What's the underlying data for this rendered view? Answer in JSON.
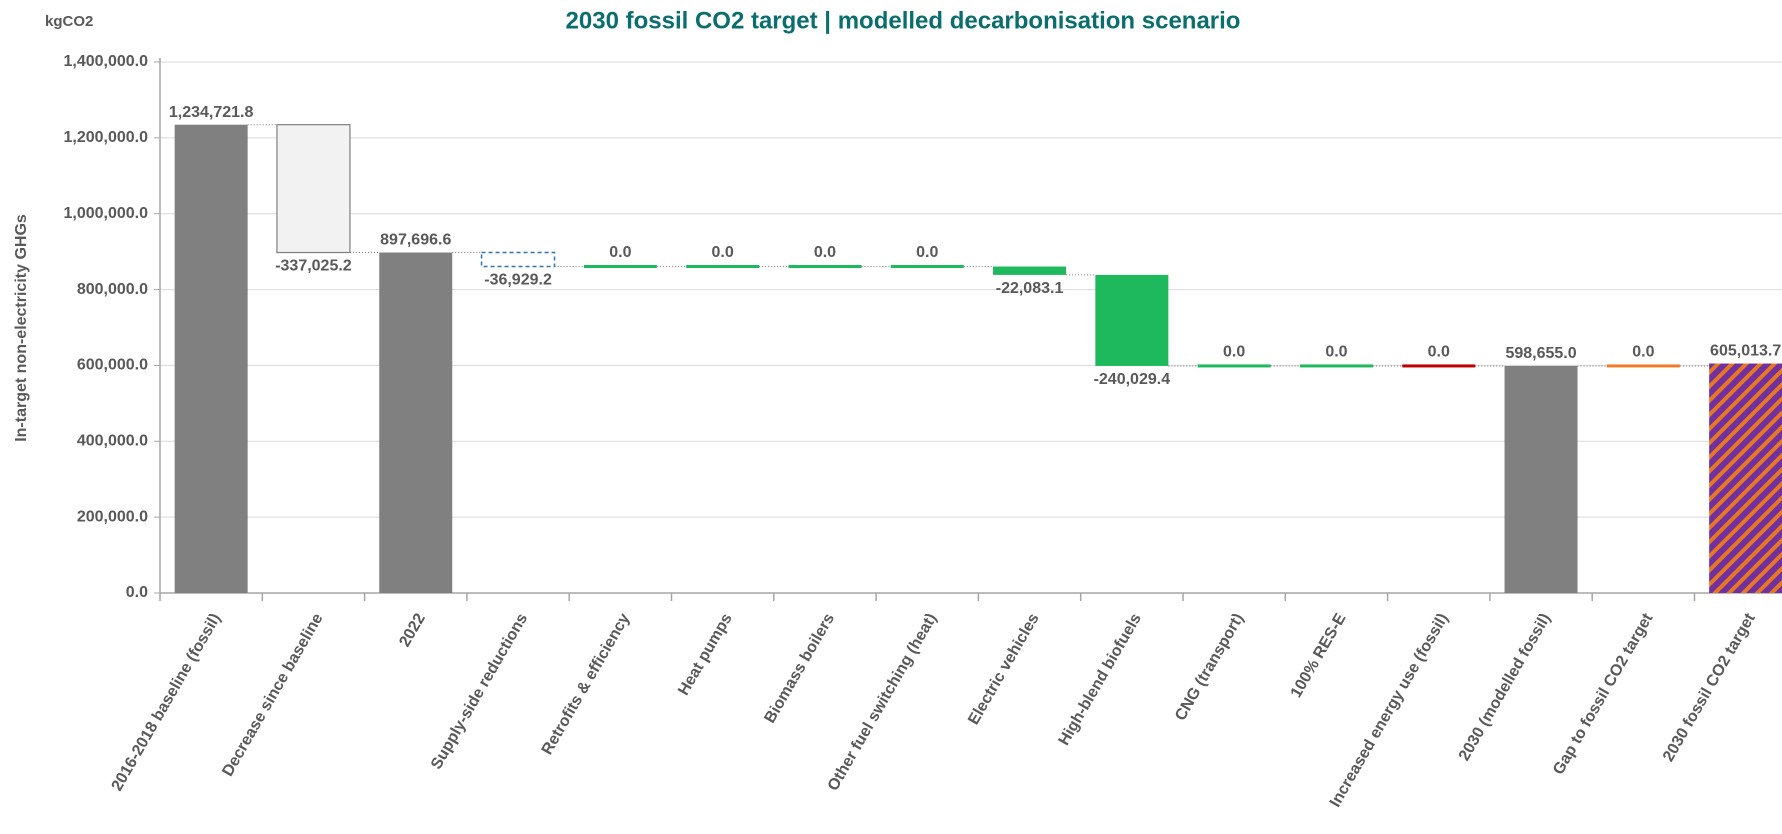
{
  "chart_data": {
    "type": "waterfall",
    "title": "2030 fossil CO2 target | modelled decarbonisation scenario",
    "unit_label": "kgCO2",
    "ylabel": "In-target non-electricity GHGs",
    "categories": [
      "2016-2018 baseline (fossil)",
      "Decrease since baseline",
      "2022",
      "Supply-side reductions",
      "Retrofits & efficiency",
      "Heat pumps",
      "Biomass boilers",
      "Other fuel switching (heat)",
      "Electric vehicles",
      "High-blend biofuels",
      "CNG (transport)",
      "100% RES-E",
      "Increased energy use (fossil)",
      "2030 (modelled fossil)",
      "Gap to fossil CO2 target",
      "2030 fossil CO2 target"
    ],
    "values": [
      1234721.8,
      -337025.2,
      897696.6,
      -36929.2,
      0,
      0,
      0,
      0,
      -22083.1,
      -240029.4,
      0,
      0,
      0,
      598655.0,
      0,
      605013.7
    ],
    "value_labels": [
      "1,234,721.8",
      "-337,025.2",
      "897,696.6",
      "-36,929.2",
      "0.0",
      "0.0",
      "0.0",
      "0.0",
      "-22,083.1",
      "-240,029.4",
      "0.0",
      "0.0",
      "0.0",
      "598,655.0",
      "0.0",
      "605,013.7"
    ],
    "measure": [
      "absolute",
      "relative",
      "absolute",
      "relative",
      "relative",
      "relative",
      "relative",
      "relative",
      "relative",
      "relative",
      "relative",
      "relative",
      "relative",
      "absolute",
      "relative",
      "absolute"
    ],
    "colors": [
      "#808080",
      "#f2f2f2",
      "#808080",
      "#2e75b6",
      "#1db95c",
      "#1db95c",
      "#1db95c",
      "#1db95c",
      "#1db95c",
      "#1db95c",
      "#1db95c",
      "#1db95c",
      "#c00000",
      "#808080",
      "#f07c2a",
      "#7030a0"
    ],
    "edge_colors": [
      null,
      "#808080",
      null,
      null,
      null,
      null,
      null,
      null,
      null,
      null,
      null,
      null,
      null,
      null,
      null,
      null
    ],
    "fill_styles": [
      "solid",
      "solid",
      "solid",
      "dashed-outline",
      "solid",
      "solid",
      "solid",
      "solid",
      "solid",
      "solid",
      "solid",
      "solid",
      "solid",
      "solid",
      "solid",
      "hatched"
    ],
    "hatch_color": "#e87722",
    "ylim": [
      0,
      1400000
    ],
    "yticks": [
      {
        "value": 0,
        "label": "0.0"
      },
      {
        "value": 200000,
        "label": "200,000.0"
      },
      {
        "value": 400000,
        "label": "400,000.0"
      },
      {
        "value": 600000,
        "label": "600,000.0"
      },
      {
        "value": 800000,
        "label": "800,000.0"
      },
      {
        "value": 1000000,
        "label": "1,000,000.0"
      },
      {
        "value": 1200000,
        "label": "1,200,000.0"
      },
      {
        "value": 1400000,
        "label": "1,400,000.0"
      }
    ],
    "grid": true
  }
}
